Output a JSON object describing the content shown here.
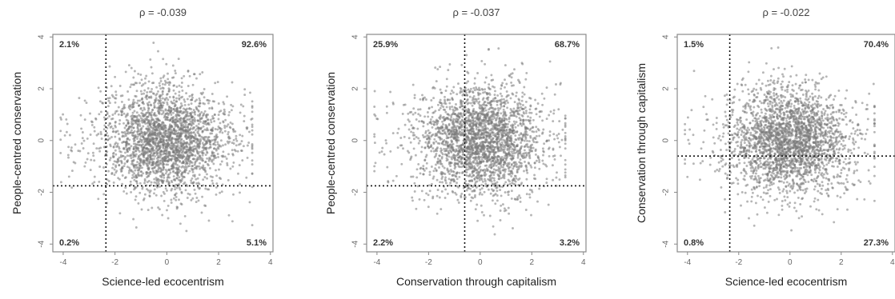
{
  "chart_data": [
    {
      "type": "scatter",
      "title": "ρ = -0.039",
      "xlabel": "Science-led ecocentrism",
      "ylabel": "People-centred conservation",
      "xlim": [
        -4.4,
        4.1
      ],
      "ylim": [
        -4.3,
        4.1
      ],
      "x_ticks": [
        -4,
        -2,
        0,
        2,
        4
      ],
      "y_ticks": [
        -4,
        -2,
        0,
        2,
        4
      ],
      "x_threshold": -2.35,
      "y_threshold": -1.75,
      "center": [
        0.0,
        0.0
      ],
      "spread": [
        1.15,
        1.05
      ],
      "quadrants": {
        "top_left": "2.1%",
        "top_right": "92.6%",
        "bottom_left": "0.2%",
        "bottom_right": "5.1%"
      }
    },
    {
      "type": "scatter",
      "title": "ρ = -0.037",
      "xlabel": "Conservation through capitalism",
      "ylabel": "People-centred conservation",
      "xlim": [
        -4.4,
        4.1
      ],
      "ylim": [
        -4.3,
        4.1
      ],
      "x_ticks": [
        -4,
        -2,
        0,
        2,
        4
      ],
      "y_ticks": [
        -4,
        -2,
        0,
        2,
        4
      ],
      "x_threshold": -0.6,
      "y_threshold": -1.75,
      "center": [
        0.0,
        0.0
      ],
      "spread": [
        1.15,
        1.05
      ],
      "quadrants": {
        "top_left": "25.9%",
        "top_right": "68.7%",
        "bottom_left": "2.2%",
        "bottom_right": "3.2%"
      }
    },
    {
      "type": "scatter",
      "title": "ρ = -0.022",
      "xlabel": "Science-led ecocentrism",
      "ylabel": "Conservation through capitalism",
      "xlim": [
        -4.4,
        4.1
      ],
      "ylim": [
        -4.3,
        4.1
      ],
      "x_ticks": [
        -4,
        -2,
        0,
        2,
        4
      ],
      "y_ticks": [
        -4,
        -2,
        0,
        2,
        4
      ],
      "x_threshold": -2.35,
      "y_threshold": -0.6,
      "center": [
        0.0,
        0.0
      ],
      "spread": [
        1.15,
        1.05
      ],
      "quadrants": {
        "top_left": "1.5%",
        "top_right": "70.4%",
        "bottom_left": "0.8%",
        "bottom_right": "27.3%"
      }
    }
  ]
}
